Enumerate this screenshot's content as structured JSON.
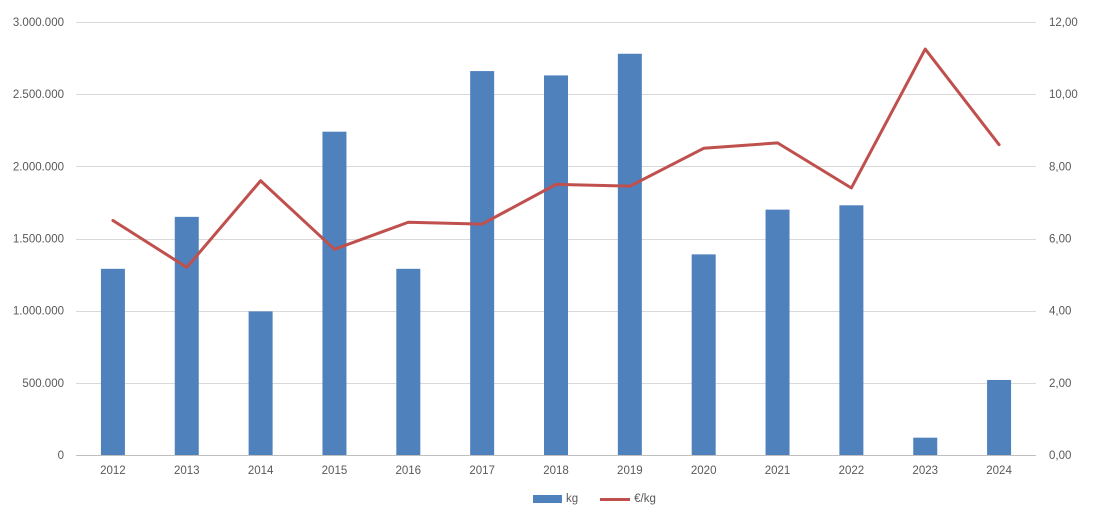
{
  "chart_data": {
    "type": "combo-bar-line",
    "title": "",
    "categories": [
      "2012",
      "2013",
      "2014",
      "2015",
      "2016",
      "2017",
      "2018",
      "2019",
      "2020",
      "2021",
      "2022",
      "2023",
      "2024"
    ],
    "series": [
      {
        "name": "kg",
        "type": "bar",
        "axis": "left",
        "values": [
          1290000,
          1650000,
          995000,
          2240000,
          1290000,
          2660000,
          2630000,
          2780000,
          1390000,
          1700000,
          1730000,
          120000,
          520000
        ]
      },
      {
        "name": "€/kg",
        "type": "line",
        "axis": "right",
        "values": [
          6.5,
          5.2,
          7.6,
          5.7,
          6.45,
          6.4,
          7.5,
          7.45,
          8.5,
          8.65,
          7.4,
          11.25,
          8.6
        ]
      }
    ],
    "left_axis": {
      "min": 0,
      "max": 3000000,
      "tick_labels": [
        "0",
        "500.000",
        "1.000.000",
        "1.500.000",
        "2.000.000",
        "2.500.000",
        "3.000.000"
      ]
    },
    "right_axis": {
      "min": 0,
      "max": 12,
      "tick_labels": [
        "0,00",
        "2,00",
        "4,00",
        "6,00",
        "8,00",
        "10,00",
        "12,00"
      ]
    },
    "grid": true,
    "legend_position": "bottom"
  },
  "colors": {
    "bar": "#4f81bd",
    "line": "#c0504d",
    "gridline": "#d9d9d9",
    "axis_line": "#bfbfbf",
    "label_text": "#595959"
  }
}
